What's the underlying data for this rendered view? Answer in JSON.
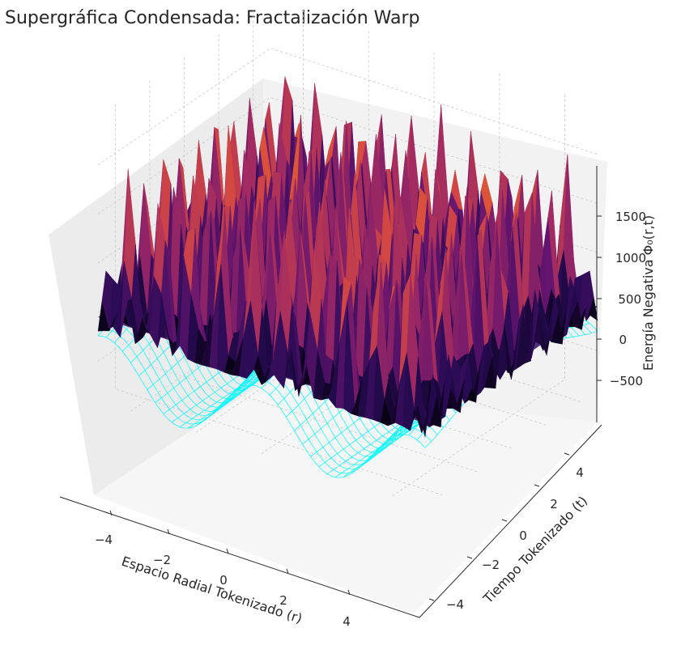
{
  "chart_data": {
    "type": "surface3d",
    "title": "Supergráfica Condensada: Fractalización Warp",
    "xlabel": "Espacio Radial Tokenizado (r)",
    "ylabel": "Tiempo Tokenizado (t)",
    "zlabel": "Energía Negativa Φ₀(r,t)",
    "x_ticks": [
      "−4",
      "−2",
      "0",
      "2",
      "4"
    ],
    "y_ticks": [
      "−4",
      "−2",
      "0",
      "2",
      "4"
    ],
    "z_ticks": [
      "−500",
      "0",
      "500",
      "1000",
      "1500"
    ],
    "xlim": [
      -5,
      5
    ],
    "ylim": [
      -5,
      5
    ],
    "zlim": [
      -900,
      2000
    ],
    "grid": true,
    "surface_colormap": "inferno",
    "wireframe_color": "#00ffff",
    "series": [
      {
        "kind": "fractal-surface",
        "x_range": [
          -5,
          5
        ],
        "y_range": [
          -5,
          5
        ],
        "z_range": [
          -200,
          1900
        ]
      },
      {
        "kind": "flat-plane",
        "z": -50
      },
      {
        "kind": "wireframe",
        "x_range": [
          -5,
          5
        ],
        "y_range": [
          -5,
          5
        ],
        "z_range": [
          -900,
          150
        ]
      }
    ]
  }
}
